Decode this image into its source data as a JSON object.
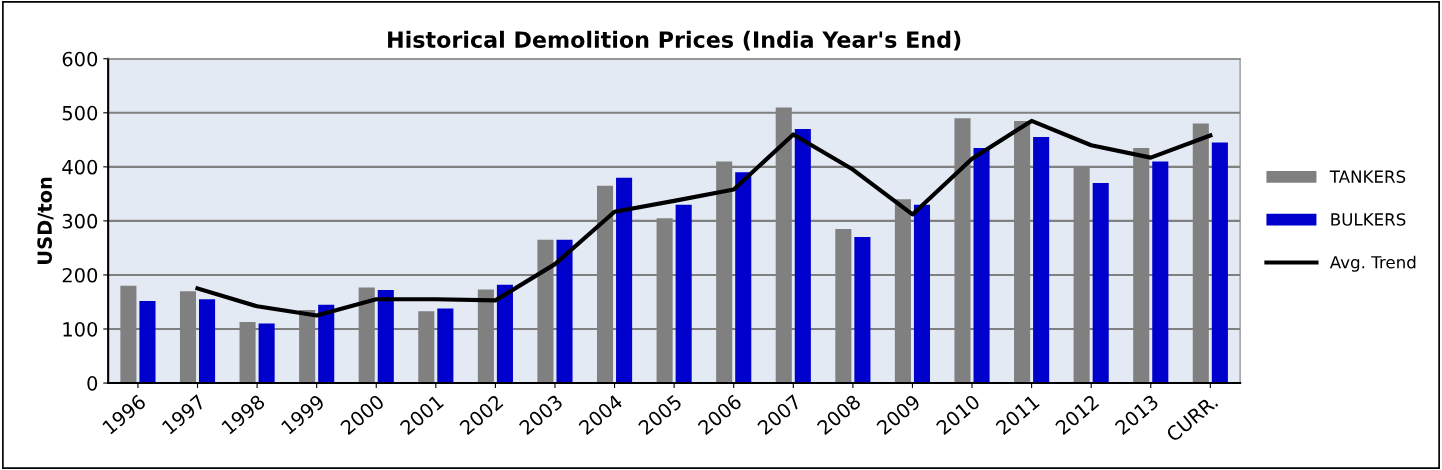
{
  "chart_data": {
    "type": "bar",
    "title": "Historical Demolition Prices (India Year's End)",
    "ylabel": "USD/ton",
    "categories": [
      "1996",
      "1997",
      "1998",
      "1999",
      "2000",
      "2001",
      "2002",
      "2003",
      "2004",
      "2005",
      "2006",
      "2007",
      "2008",
      "2009",
      "2010",
      "2011",
      "2012",
      "2013",
      "CURR."
    ],
    "series": [
      {
        "name": "TANKERS",
        "color": "#808080",
        "values": [
          180,
          170,
          113,
          135,
          177,
          133,
          173,
          265,
          365,
          305,
          410,
          510,
          285,
          340,
          490,
          485,
          400,
          435,
          480
        ]
      },
      {
        "name": "BULKERS",
        "color": "#0000cc",
        "values": [
          152,
          155,
          110,
          145,
          172,
          138,
          182,
          265,
          380,
          330,
          390,
          470,
          270,
          330,
          435,
          455,
          370,
          410,
          445
        ]
      },
      {
        "name": "Avg. Trend",
        "type": "line",
        "color": "#000000",
        "values": [
          null,
          175,
          142,
          125,
          155,
          155,
          153,
          220,
          317,
          337,
          358,
          460,
          395,
          312,
          415,
          485,
          440,
          417,
          458
        ]
      }
    ],
    "ylim": [
      0,
      600
    ],
    "yticks": [
      0,
      100,
      200,
      300,
      400,
      500,
      600
    ],
    "grid": "y",
    "legend": "right",
    "marker": "none",
    "line_style": "solid"
  }
}
